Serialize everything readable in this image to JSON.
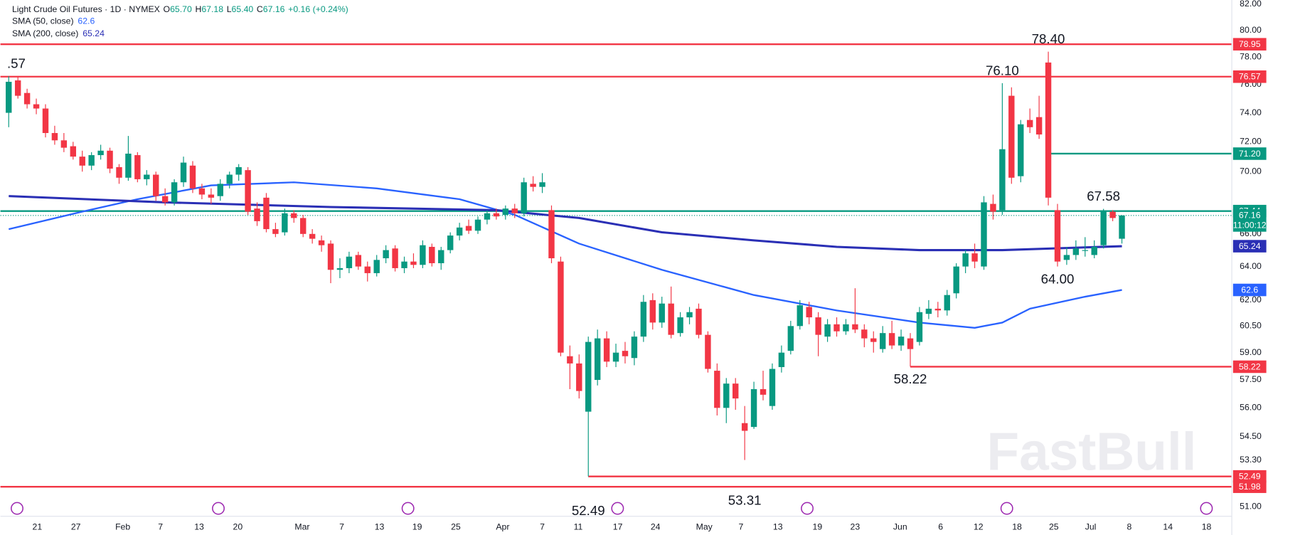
{
  "chart_data": {
    "type": "candlestick",
    "title": "Light Crude Oil Futures · 1D · NYMEX",
    "quote": [
      {
        "label": "O",
        "value": "65.70"
      },
      {
        "label": "H",
        "value": "67.18"
      },
      {
        "label": "L",
        "value": "65.40"
      },
      {
        "label": "C",
        "value": "67.16"
      }
    ],
    "change": "+0.16 (+0.24%)",
    "countdown": "11:00:12",
    "watermark": "FastBull",
    "log": true,
    "grid": false,
    "up_color": "#089981",
    "down_color": "#f23645",
    "xlim": [
      -0.9,
      132.9
    ],
    "ylim": [
      50.57,
      82.32
    ],
    "yticks": [
      {
        "value": 82,
        "label": "82.00"
      },
      {
        "value": 80,
        "label": "80.00"
      },
      {
        "value": 78,
        "label": "78.00"
      },
      {
        "value": 76,
        "label": "76.00"
      },
      {
        "value": 74,
        "label": "74.00"
      },
      {
        "value": 72,
        "label": "72.00"
      },
      {
        "value": 70,
        "label": "70.00"
      },
      {
        "value": 66,
        "label": "66.00"
      },
      {
        "value": 64,
        "label": "64.00"
      },
      {
        "value": 62,
        "label": "62.00"
      },
      {
        "value": 60.5,
        "label": "60.50"
      },
      {
        "value": 59,
        "label": "59.00"
      },
      {
        "value": 57.5,
        "label": "57.50"
      },
      {
        "value": 56,
        "label": "56.00"
      },
      {
        "value": 54.5,
        "label": "54.50"
      },
      {
        "value": 53.3,
        "label": "53.30"
      },
      {
        "value": 51,
        "label": "51.00"
      }
    ],
    "xticks": [
      {
        "value": 3.1,
        "label": "21"
      },
      {
        "value": 7.3,
        "label": "27"
      },
      {
        "value": 12.4,
        "label": "Feb"
      },
      {
        "value": 16.5,
        "label": "7"
      },
      {
        "value": 20.7,
        "label": "13"
      },
      {
        "value": 24.9,
        "label": "20"
      },
      {
        "value": 31.9,
        "label": "Mar"
      },
      {
        "value": 36.2,
        "label": "7"
      },
      {
        "value": 40.3,
        "label": "13"
      },
      {
        "value": 44.4,
        "label": "19"
      },
      {
        "value": 48.6,
        "label": "25"
      },
      {
        "value": 53.7,
        "label": "Apr"
      },
      {
        "value": 58,
        "label": "7"
      },
      {
        "value": 61.9,
        "label": "11"
      },
      {
        "value": 66.2,
        "label": "17"
      },
      {
        "value": 70.3,
        "label": "24"
      },
      {
        "value": 75.6,
        "label": "May"
      },
      {
        "value": 79.6,
        "label": "7"
      },
      {
        "value": 83.6,
        "label": "13"
      },
      {
        "value": 87.9,
        "label": "19"
      },
      {
        "value": 92,
        "label": "23"
      },
      {
        "value": 96.9,
        "label": "Jun"
      },
      {
        "value": 101.3,
        "label": "6"
      },
      {
        "value": 105.4,
        "label": "12"
      },
      {
        "value": 109.6,
        "label": "18"
      },
      {
        "value": 113.6,
        "label": "25"
      },
      {
        "value": 117.6,
        "label": "Jul"
      },
      {
        "value": 121.8,
        "label": "8"
      },
      {
        "value": 126,
        "label": "14"
      },
      {
        "value": 130.2,
        "label": "18"
      }
    ],
    "candles": [
      {
        "o": 74.0,
        "h": 76.6,
        "l": 73.0,
        "c": 76.2
      },
      {
        "o": 76.3,
        "h": 76.6,
        "l": 75.0,
        "c": 75.2
      },
      {
        "o": 75.4,
        "h": 75.7,
        "l": 74.3,
        "c": 74.6
      },
      {
        "o": 74.6,
        "h": 75.0,
        "l": 73.9,
        "c": 74.3
      },
      {
        "o": 74.3,
        "h": 74.6,
        "l": 72.3,
        "c": 72.6
      },
      {
        "o": 72.6,
        "h": 73.1,
        "l": 71.8,
        "c": 72.1
      },
      {
        "o": 72.1,
        "h": 72.6,
        "l": 71.3,
        "c": 71.6
      },
      {
        "o": 71.7,
        "h": 72.0,
        "l": 70.8,
        "c": 71.0
      },
      {
        "o": 71.0,
        "h": 71.4,
        "l": 70.0,
        "c": 70.4
      },
      {
        "o": 70.4,
        "h": 71.3,
        "l": 70.1,
        "c": 71.1
      },
      {
        "o": 71.1,
        "h": 71.8,
        "l": 70.8,
        "c": 71.4
      },
      {
        "o": 71.4,
        "h": 71.6,
        "l": 69.9,
        "c": 70.2
      },
      {
        "o": 70.3,
        "h": 70.5,
        "l": 69.2,
        "c": 69.6
      },
      {
        "o": 69.6,
        "h": 72.4,
        "l": 69.4,
        "c": 71.2
      },
      {
        "o": 71.1,
        "h": 71.3,
        "l": 69.3,
        "c": 69.5
      },
      {
        "o": 69.5,
        "h": 70.1,
        "l": 69.1,
        "c": 69.8
      },
      {
        "o": 69.8,
        "h": 70.0,
        "l": 68.1,
        "c": 68.4
      },
      {
        "o": 68.4,
        "h": 68.9,
        "l": 67.8,
        "c": 68.0
      },
      {
        "o": 68.0,
        "h": 69.5,
        "l": 67.8,
        "c": 69.3
      },
      {
        "o": 69.3,
        "h": 71.0,
        "l": 69.0,
        "c": 70.6
      },
      {
        "o": 70.4,
        "h": 70.7,
        "l": 68.6,
        "c": 68.9
      },
      {
        "o": 68.9,
        "h": 69.2,
        "l": 68.2,
        "c": 68.5
      },
      {
        "o": 68.5,
        "h": 68.9,
        "l": 67.9,
        "c": 68.3
      },
      {
        "o": 68.4,
        "h": 69.5,
        "l": 68.1,
        "c": 69.2
      },
      {
        "o": 69.2,
        "h": 70.0,
        "l": 68.9,
        "c": 69.8
      },
      {
        "o": 69.8,
        "h": 70.5,
        "l": 69.4,
        "c": 70.3
      },
      {
        "o": 70.1,
        "h": 70.3,
        "l": 67.2,
        "c": 67.4
      },
      {
        "o": 67.6,
        "h": 68.0,
        "l": 66.5,
        "c": 66.8
      },
      {
        "o": 68.3,
        "h": 68.6,
        "l": 66.1,
        "c": 66.3
      },
      {
        "o": 66.3,
        "h": 66.7,
        "l": 65.8,
        "c": 66.0
      },
      {
        "o": 66.1,
        "h": 67.6,
        "l": 65.9,
        "c": 67.3
      },
      {
        "o": 67.3,
        "h": 67.5,
        "l": 66.7,
        "c": 67.0
      },
      {
        "o": 67.0,
        "h": 67.2,
        "l": 65.8,
        "c": 66.0
      },
      {
        "o": 66.0,
        "h": 66.3,
        "l": 65.4,
        "c": 65.7
      },
      {
        "o": 65.6,
        "h": 65.9,
        "l": 64.9,
        "c": 65.3
      },
      {
        "o": 65.4,
        "h": 65.6,
        "l": 63.0,
        "c": 63.8
      },
      {
        "o": 63.8,
        "h": 64.5,
        "l": 63.3,
        "c": 63.9
      },
      {
        "o": 63.9,
        "h": 64.9,
        "l": 63.6,
        "c": 64.6
      },
      {
        "o": 64.7,
        "h": 64.9,
        "l": 63.8,
        "c": 64.0
      },
      {
        "o": 64.0,
        "h": 64.3,
        "l": 63.1,
        "c": 63.6
      },
      {
        "o": 63.6,
        "h": 64.7,
        "l": 63.4,
        "c": 64.4
      },
      {
        "o": 64.5,
        "h": 65.3,
        "l": 64.2,
        "c": 65.0
      },
      {
        "o": 65.1,
        "h": 65.3,
        "l": 63.7,
        "c": 63.9
      },
      {
        "o": 63.9,
        "h": 64.6,
        "l": 63.6,
        "c": 64.3
      },
      {
        "o": 64.3,
        "h": 64.8,
        "l": 63.9,
        "c": 64.1
      },
      {
        "o": 64.1,
        "h": 65.6,
        "l": 63.9,
        "c": 65.3
      },
      {
        "o": 65.2,
        "h": 65.4,
        "l": 64.0,
        "c": 64.2
      },
      {
        "o": 64.2,
        "h": 65.2,
        "l": 63.8,
        "c": 65.0
      },
      {
        "o": 65.0,
        "h": 66.1,
        "l": 64.8,
        "c": 65.9
      },
      {
        "o": 65.9,
        "h": 66.7,
        "l": 65.6,
        "c": 66.4
      },
      {
        "o": 66.5,
        "h": 66.9,
        "l": 66.0,
        "c": 66.2
      },
      {
        "o": 66.2,
        "h": 67.1,
        "l": 66.0,
        "c": 66.9
      },
      {
        "o": 66.9,
        "h": 67.5,
        "l": 66.6,
        "c": 67.3
      },
      {
        "o": 67.3,
        "h": 67.6,
        "l": 66.9,
        "c": 67.1
      },
      {
        "o": 67.2,
        "h": 67.8,
        "l": 66.9,
        "c": 67.6
      },
      {
        "o": 67.6,
        "h": 67.9,
        "l": 67.0,
        "c": 67.3
      },
      {
        "o": 67.3,
        "h": 69.6,
        "l": 67.1,
        "c": 69.3
      },
      {
        "o": 69.2,
        "h": 69.7,
        "l": 68.7,
        "c": 69.0
      },
      {
        "o": 69.0,
        "h": 69.9,
        "l": 68.6,
        "c": 69.3
      },
      {
        "o": 67.5,
        "h": 67.8,
        "l": 64.2,
        "c": 64.5
      },
      {
        "o": 64.3,
        "h": 64.6,
        "l": 58.8,
        "c": 59.0
      },
      {
        "o": 58.8,
        "h": 59.4,
        "l": 57.0,
        "c": 58.4
      },
      {
        "o": 58.4,
        "h": 58.9,
        "l": 56.5,
        "c": 56.9
      },
      {
        "o": 55.8,
        "h": 59.9,
        "l": 52.49,
        "c": 59.6
      },
      {
        "o": 57.5,
        "h": 60.3,
        "l": 57.2,
        "c": 59.8
      },
      {
        "o": 59.8,
        "h": 60.2,
        "l": 58.2,
        "c": 58.5
      },
      {
        "o": 58.5,
        "h": 59.5,
        "l": 58.2,
        "c": 59.0
      },
      {
        "o": 59.1,
        "h": 59.6,
        "l": 58.4,
        "c": 58.8
      },
      {
        "o": 58.7,
        "h": 60.2,
        "l": 58.3,
        "c": 59.9
      },
      {
        "o": 59.9,
        "h": 62.3,
        "l": 59.6,
        "c": 61.9
      },
      {
        "o": 62.0,
        "h": 62.4,
        "l": 60.3,
        "c": 60.7
      },
      {
        "o": 60.7,
        "h": 62.2,
        "l": 60.4,
        "c": 61.8
      },
      {
        "o": 61.8,
        "h": 62.8,
        "l": 59.8,
        "c": 60.0
      },
      {
        "o": 60.1,
        "h": 61.3,
        "l": 59.9,
        "c": 61.0
      },
      {
        "o": 61.0,
        "h": 61.6,
        "l": 60.6,
        "c": 61.3
      },
      {
        "o": 61.5,
        "h": 61.8,
        "l": 59.8,
        "c": 60.0
      },
      {
        "o": 60.0,
        "h": 60.2,
        "l": 57.9,
        "c": 58.1
      },
      {
        "o": 58.0,
        "h": 58.4,
        "l": 55.6,
        "c": 56.0
      },
      {
        "o": 56.0,
        "h": 57.6,
        "l": 55.2,
        "c": 57.3
      },
      {
        "o": 57.3,
        "h": 57.6,
        "l": 55.9,
        "c": 56.5
      },
      {
        "o": 55.2,
        "h": 56.1,
        "l": 53.31,
        "c": 54.8
      },
      {
        "o": 55.0,
        "h": 57.4,
        "l": 54.9,
        "c": 57.0
      },
      {
        "o": 57.0,
        "h": 58.0,
        "l": 56.4,
        "c": 56.7
      },
      {
        "o": 56.1,
        "h": 58.4,
        "l": 55.9,
        "c": 58.1
      },
      {
        "o": 58.2,
        "h": 59.4,
        "l": 57.9,
        "c": 59.0
      },
      {
        "o": 59.1,
        "h": 60.8,
        "l": 58.9,
        "c": 60.5
      },
      {
        "o": 60.5,
        "h": 62.0,
        "l": 60.3,
        "c": 61.7
      },
      {
        "o": 61.6,
        "h": 61.9,
        "l": 60.6,
        "c": 61.0
      },
      {
        "o": 61.0,
        "h": 61.3,
        "l": 58.8,
        "c": 60.0
      },
      {
        "o": 59.9,
        "h": 60.9,
        "l": 59.6,
        "c": 60.6
      },
      {
        "o": 60.6,
        "h": 61.0,
        "l": 59.9,
        "c": 60.2
      },
      {
        "o": 60.2,
        "h": 60.9,
        "l": 60.0,
        "c": 60.6
      },
      {
        "o": 60.6,
        "h": 62.7,
        "l": 60.1,
        "c": 60.3
      },
      {
        "o": 60.3,
        "h": 60.6,
        "l": 59.3,
        "c": 59.8
      },
      {
        "o": 59.8,
        "h": 60.2,
        "l": 59.0,
        "c": 59.6
      },
      {
        "o": 59.2,
        "h": 60.5,
        "l": 59.0,
        "c": 60.1
      },
      {
        "o": 60.1,
        "h": 60.8,
        "l": 59.2,
        "c": 59.4
      },
      {
        "o": 59.4,
        "h": 60.3,
        "l": 59.1,
        "c": 59.9
      },
      {
        "o": 59.8,
        "h": 60.1,
        "l": 58.22,
        "c": 59.2
      },
      {
        "o": 59.6,
        "h": 61.6,
        "l": 59.4,
        "c": 61.3
      },
      {
        "o": 61.2,
        "h": 62.0,
        "l": 60.9,
        "c": 61.5
      },
      {
        "o": 61.5,
        "h": 61.9,
        "l": 61.0,
        "c": 61.4
      },
      {
        "o": 61.4,
        "h": 62.6,
        "l": 61.1,
        "c": 62.3
      },
      {
        "o": 62.4,
        "h": 64.2,
        "l": 62.1,
        "c": 64.0
      },
      {
        "o": 64.0,
        "h": 65.0,
        "l": 63.6,
        "c": 64.8
      },
      {
        "o": 64.8,
        "h": 65.4,
        "l": 63.9,
        "c": 64.3
      },
      {
        "o": 64.0,
        "h": 68.4,
        "l": 63.8,
        "c": 68.0
      },
      {
        "o": 67.9,
        "h": 68.5,
        "l": 66.9,
        "c": 67.4
      },
      {
        "o": 67.5,
        "h": 76.1,
        "l": 67.2,
        "c": 71.5
      },
      {
        "o": 75.2,
        "h": 75.8,
        "l": 69.2,
        "c": 69.6
      },
      {
        "o": 69.7,
        "h": 73.5,
        "l": 69.3,
        "c": 73.2
      },
      {
        "o": 73.5,
        "h": 74.3,
        "l": 72.6,
        "c": 73.0
      },
      {
        "o": 73.7,
        "h": 75.2,
        "l": 72.2,
        "c": 72.5
      },
      {
        "o": 77.6,
        "h": 78.4,
        "l": 67.8,
        "c": 68.3
      },
      {
        "o": 67.5,
        "h": 67.9,
        "l": 64.0,
        "c": 64.3
      },
      {
        "o": 64.4,
        "h": 65.2,
        "l": 64.1,
        "c": 64.7
      },
      {
        "o": 64.7,
        "h": 65.6,
        "l": 64.4,
        "c": 65.1
      },
      {
        "o": 65.0,
        "h": 65.8,
        "l": 64.6,
        "c": 65.0
      },
      {
        "o": 64.7,
        "h": 65.6,
        "l": 64.5,
        "c": 65.2
      },
      {
        "o": 65.3,
        "h": 67.58,
        "l": 65.1,
        "c": 67.4
      },
      {
        "o": 67.4,
        "h": 67.5,
        "l": 66.8,
        "c": 67.0
      },
      {
        "o": 65.7,
        "h": 67.18,
        "l": 65.4,
        "c": 67.16
      }
    ],
    "series": [
      {
        "name": "SMA (50, close)",
        "color": "#2962ff",
        "x": [
          0,
          8,
          14,
          22,
          31,
          40,
          49,
          55,
          62,
          71,
          81,
          90,
          99,
          105,
          108,
          111,
          117,
          121
        ],
        "values": [
          66.3,
          67.4,
          68.2,
          69.1,
          69.3,
          68.9,
          68.2,
          67.2,
          65.4,
          63.8,
          62.3,
          61.4,
          60.7,
          60.4,
          60.7,
          61.5,
          62.2,
          62.6
        ]
      },
      {
        "name": "SMA (200, close)",
        "color": "#2a2fb5",
        "x": [
          0,
          17,
          35,
          53,
          62,
          71,
          81,
          90,
          99,
          108,
          121
        ],
        "values": [
          68.4,
          68.0,
          67.7,
          67.5,
          67.0,
          66.1,
          65.6,
          65.2,
          65.0,
          65.0,
          65.24
        ]
      }
    ],
    "levels": [
      {
        "value": 78.95,
        "color": "#f23645"
      },
      {
        "value": 76.57,
        "color": "#f23645"
      },
      {
        "value": 71.2,
        "label": "71.20",
        "color": "#089981",
        "from": 113
      },
      {
        "value": 67.44,
        "color": "#089981"
      },
      {
        "value": 58.22,
        "color": "#f23645",
        "from": 98
      },
      {
        "value": 52.49,
        "color": "#f23645",
        "from": 63
      },
      {
        "value": 51.98,
        "color": "#f23645"
      }
    ],
    "annotations": [
      {
        "label": ".57",
        "x": 0,
        "anchor": "high"
      },
      {
        "label": "76.10",
        "x": 108,
        "anchor": "high"
      },
      {
        "label": "78.40",
        "x": 113,
        "anchor": "high"
      },
      {
        "label": "67.58",
        "x": 119,
        "anchor": "high"
      },
      {
        "label": "64.00",
        "x": 114,
        "anchor": "low"
      },
      {
        "label": "58.22",
        "x": 98,
        "anchor": "low"
      },
      {
        "label": "53.31",
        "x": 80,
        "anchor": "low"
      },
      {
        "label": "52.49",
        "x": 63,
        "anchor": "low"
      }
    ]
  }
}
